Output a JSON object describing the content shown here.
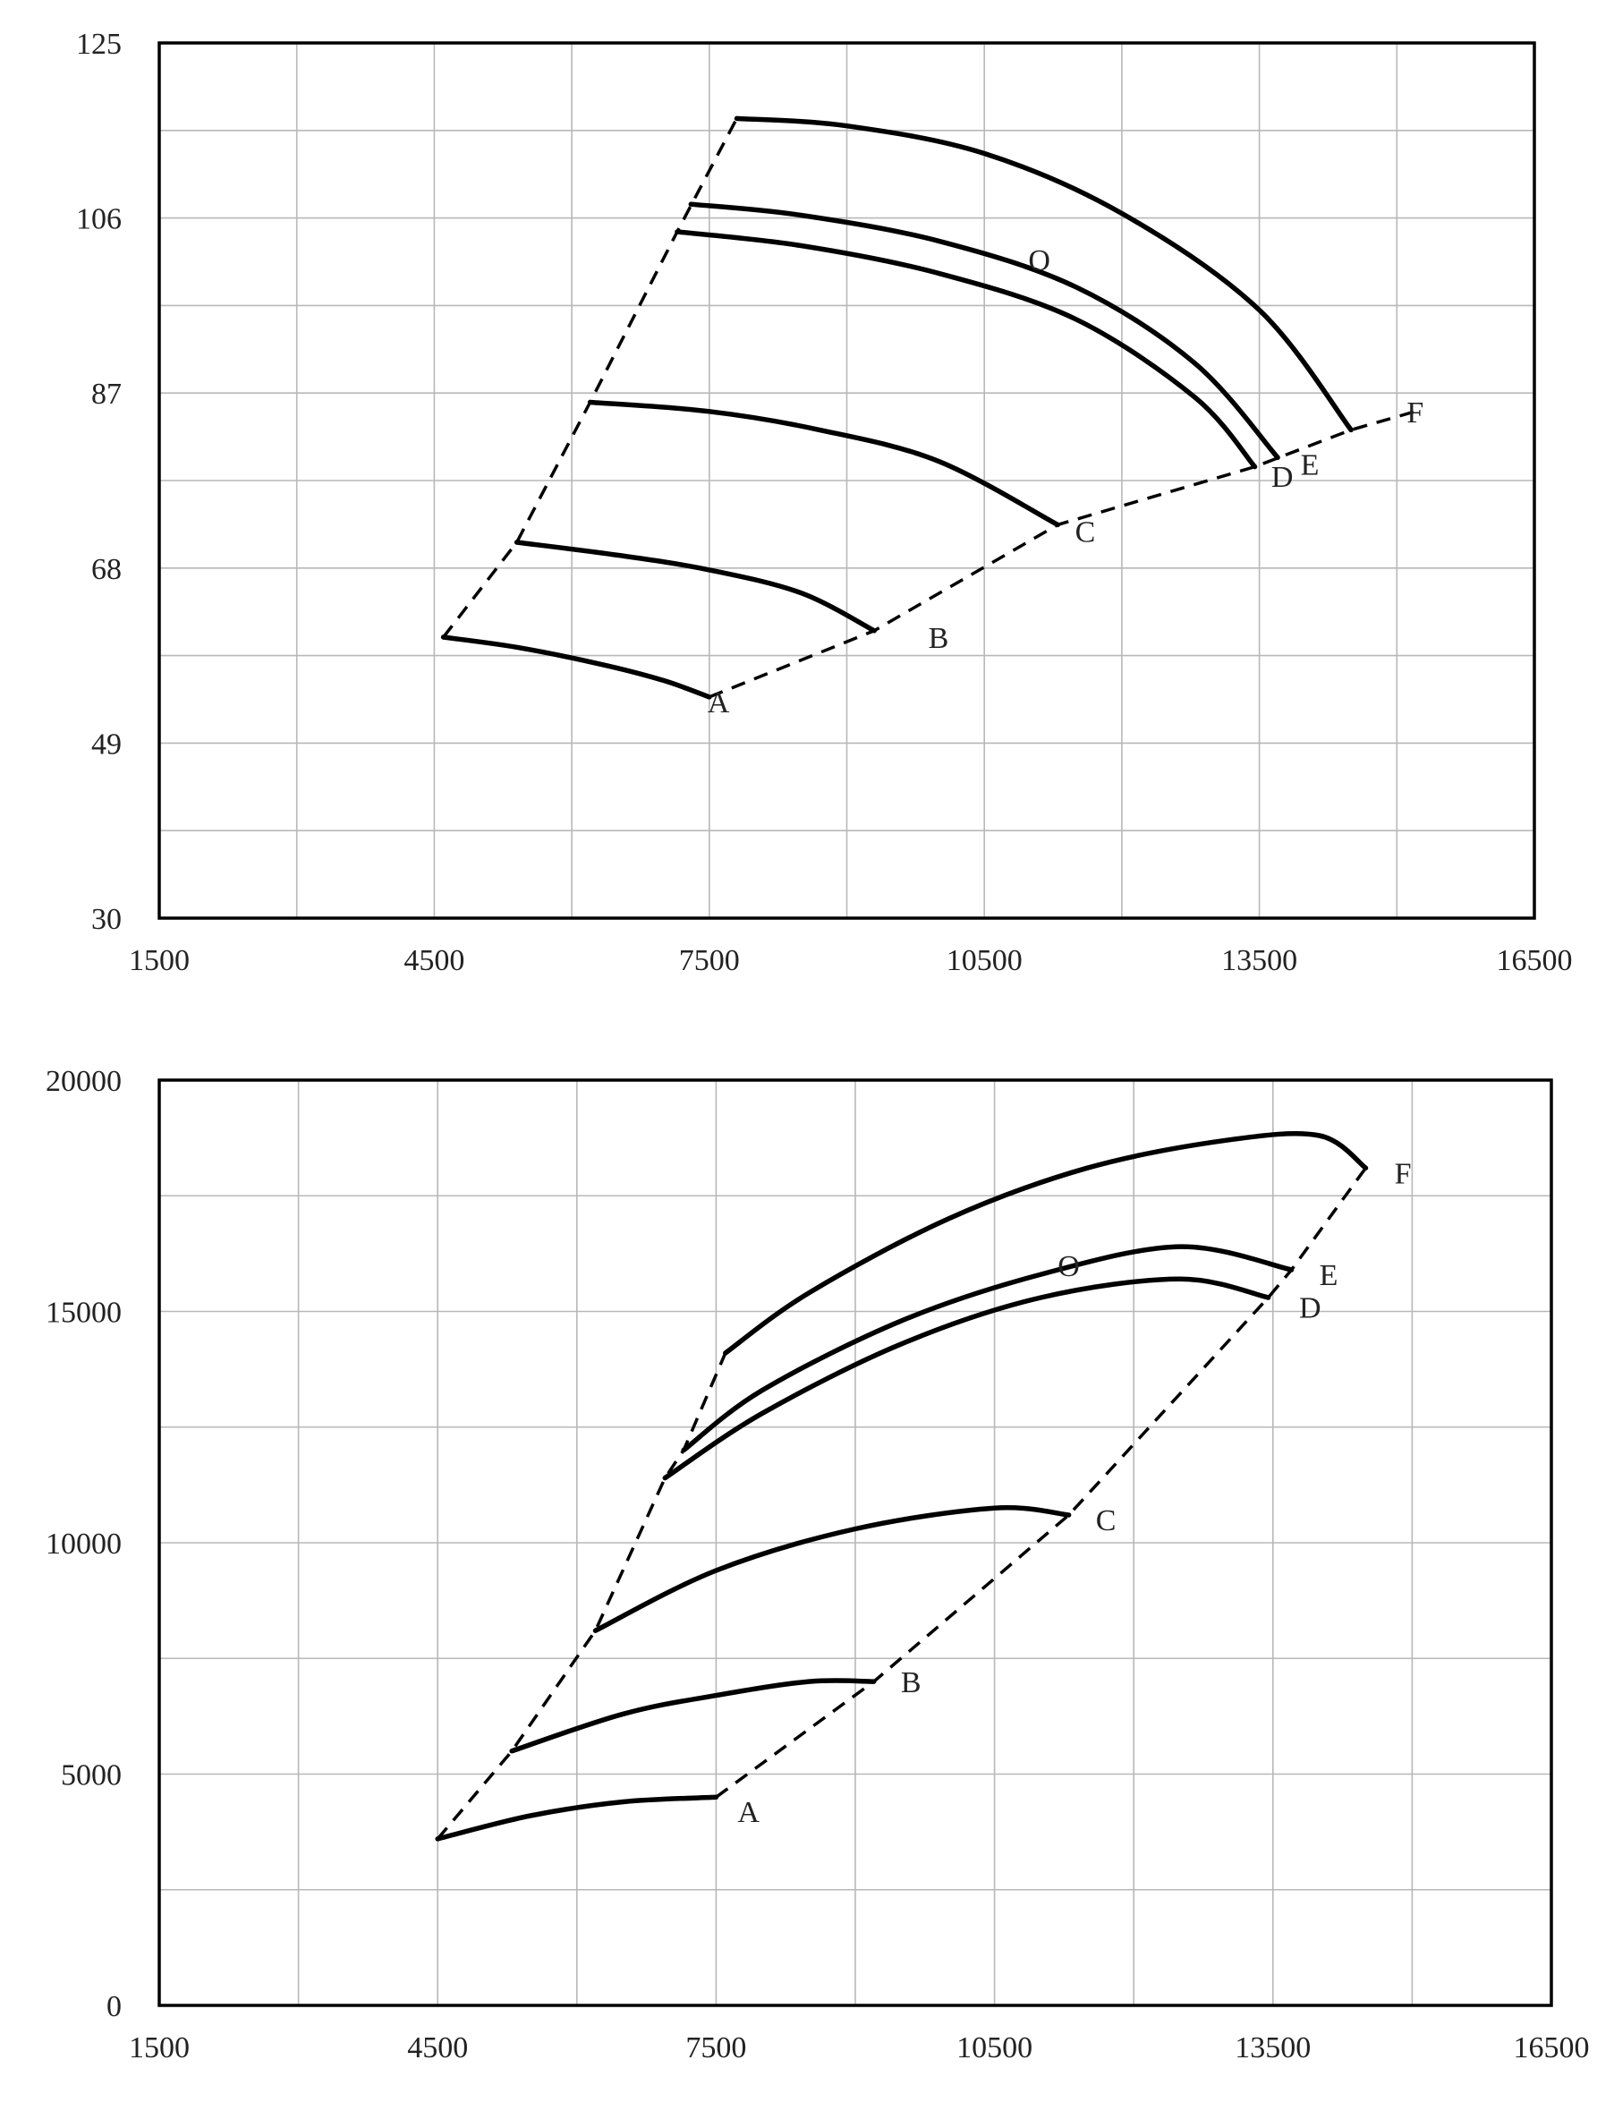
{
  "chart_data": [
    {
      "type": "line",
      "title": "",
      "xlabel": "",
      "ylabel": "",
      "xlim": [
        1500,
        16500
      ],
      "ylim": [
        30,
        125
      ],
      "x_ticks": [
        "1500",
        "4500",
        "7500",
        "10500",
        "13500",
        "16500"
      ],
      "y_ticks": [
        "30",
        "49",
        "68",
        "87",
        "106",
        "125"
      ],
      "grid": true,
      "series": [
        {
          "name": "A",
          "x": [
            4600,
            5400,
            6300,
            7000,
            7500
          ],
          "y": [
            60.5,
            59.4,
            57.6,
            55.8,
            54.0
          ]
        },
        {
          "name": "B",
          "x": [
            5400,
            6500,
            7500,
            8500,
            9300
          ],
          "y": [
            70.8,
            69.4,
            67.8,
            65.3,
            61.2
          ]
        },
        {
          "name": "C",
          "x": [
            6200,
            7500,
            8700,
            10000,
            11300
          ],
          "y": [
            86.0,
            85.0,
            83.0,
            79.6,
            72.7
          ]
        },
        {
          "name": "D",
          "x": [
            7150,
            8500,
            10000,
            11500,
            12800,
            13450
          ],
          "y": [
            104.5,
            103.0,
            100.0,
            95.0,
            86.5,
            79.0
          ]
        },
        {
          "name": "E",
          "x": [
            7300,
            8500,
            10000,
            11500,
            12800,
            13700
          ],
          "y": [
            107.5,
            106.3,
            103.5,
            98.5,
            90.2,
            80.0
          ]
        },
        {
          "name": "F",
          "x": [
            7800,
            9000,
            10500,
            12000,
            13500,
            14500
          ],
          "y": [
            116.8,
            116.0,
            113.0,
            106.5,
            96.0,
            83.0
          ]
        }
      ],
      "boundaries": {
        "left": {
          "x": [
            4600,
            5400,
            6200,
            7150,
            7800
          ],
          "y": [
            60.5,
            70.8,
            86.0,
            104.5,
            116.8
          ]
        },
        "right": {
          "x": [
            7500,
            9300,
            11300,
            13450,
            14500,
            15200
          ],
          "y": [
            54.0,
            61.2,
            72.7,
            79.0,
            83.0,
            85.0
          ]
        }
      },
      "annotations": [
        {
          "text": "A",
          "x": 7600,
          "y": 53.5
        },
        {
          "text": "B",
          "x": 10000,
          "y": 60.5
        },
        {
          "text": "C",
          "x": 11600,
          "y": 72.0
        },
        {
          "text": "D",
          "x": 13750,
          "y": 78.0
        },
        {
          "text": "E",
          "x": 14050,
          "y": 79.3
        },
        {
          "text": "F",
          "x": 15200,
          "y": 85.0
        },
        {
          "text": "O",
          "x": 11100,
          "y": 101.5
        }
      ]
    },
    {
      "type": "line",
      "title": "",
      "xlabel": "",
      "ylabel": "",
      "xlim": [
        1500,
        16500
      ],
      "ylim": [
        0,
        20000
      ],
      "x_ticks": [
        "1500",
        "4500",
        "7500",
        "10500",
        "13500",
        "16500"
      ],
      "y_ticks": [
        "0",
        "5000",
        "10000",
        "15000",
        "20000"
      ],
      "grid": true,
      "series": [
        {
          "name": "A",
          "x": [
            4500,
            5500,
            6500,
            7500
          ],
          "y": [
            3600,
            4100,
            4400,
            4500
          ]
        },
        {
          "name": "B",
          "x": [
            5300,
            6500,
            7500,
            8500,
            9200
          ],
          "y": [
            5500,
            6300,
            6700,
            7000,
            7000
          ]
        },
        {
          "name": "C",
          "x": [
            6200,
            7500,
            9000,
            10500,
            11300
          ],
          "y": [
            8100,
            9400,
            10300,
            10750,
            10600
          ]
        },
        {
          "name": "D",
          "x": [
            6950,
            8000,
            9500,
            11000,
            12500,
            13450
          ],
          "y": [
            11400,
            12800,
            14300,
            15300,
            15700,
            15300
          ]
        },
        {
          "name": "E",
          "x": [
            7150,
            8000,
            9500,
            11000,
            12500,
            13700
          ],
          "y": [
            12000,
            13300,
            14800,
            15800,
            16400,
            15900
          ]
        },
        {
          "name": "F",
          "x": [
            7600,
            8500,
            10000,
            11500,
            13000,
            14000,
            14500
          ],
          "y": [
            14100,
            15400,
            17000,
            18100,
            18700,
            18800,
            18100
          ]
        }
      ],
      "boundaries": {
        "left": {
          "x": [
            4500,
            5300,
            6200,
            6950,
            7150,
            7600
          ],
          "y": [
            3600,
            5500,
            8100,
            11400,
            12000,
            14100
          ]
        },
        "right": {
          "x": [
            7500,
            9200,
            11300,
            13450,
            13700,
            14500
          ],
          "y": [
            4500,
            7000,
            10600,
            15300,
            15900,
            18100
          ]
        }
      },
      "annotations": [
        {
          "text": "A",
          "x": 7850,
          "y": 4200
        },
        {
          "text": "B",
          "x": 9600,
          "y": 7000
        },
        {
          "text": "C",
          "x": 11700,
          "y": 10500
        },
        {
          "text": "D",
          "x": 13900,
          "y": 15100
        },
        {
          "text": "E",
          "x": 14100,
          "y": 15800
        },
        {
          "text": "F",
          "x": 14900,
          "y": 18000
        },
        {
          "text": "O",
          "x": 11300,
          "y": 16000
        }
      ]
    }
  ]
}
